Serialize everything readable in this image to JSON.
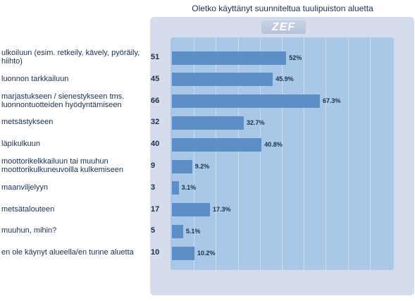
{
  "chart_data": {
    "type": "bar",
    "orientation": "horizontal",
    "title": "Oletko käyttänyt suunniteltua tuulipuiston aluetta",
    "categories": [
      "ulkoiluun (esim. retkeily, kävely, pyöräily, hiihto)",
      "luonnon tarkkailuun",
      "marjastukseen / sienestykseen tms. luonnontuotteiden hyödyntämiseen",
      "metsästykseen",
      "läpikulkuun",
      "moottorikelkkailuun tai muuhun moottorikulkuneuvoilla kulkemiseen",
      "maanviljelyyn",
      "metsätalouteen",
      "muuhun, mihin?",
      "en ole käynyt alueella/en tunne aluetta"
    ],
    "counts": [
      "51",
      "45",
      "66",
      "32",
      "40",
      "9",
      "3",
      "17",
      "5",
      "10"
    ],
    "values": [
      52,
      45.9,
      67.3,
      32.7,
      40.8,
      9.2,
      3.1,
      17.3,
      5.1,
      10.2
    ],
    "value_labels": [
      "52%",
      "45.9%",
      "67.3%",
      "32.7%",
      "40.8%",
      "9.2%",
      "3.1%",
      "17.3%",
      "5.1%",
      "10.2%"
    ],
    "xlim": [
      0,
      100
    ],
    "grid": true,
    "bar_color": "#5b8fc6"
  },
  "badge": "ZEF"
}
